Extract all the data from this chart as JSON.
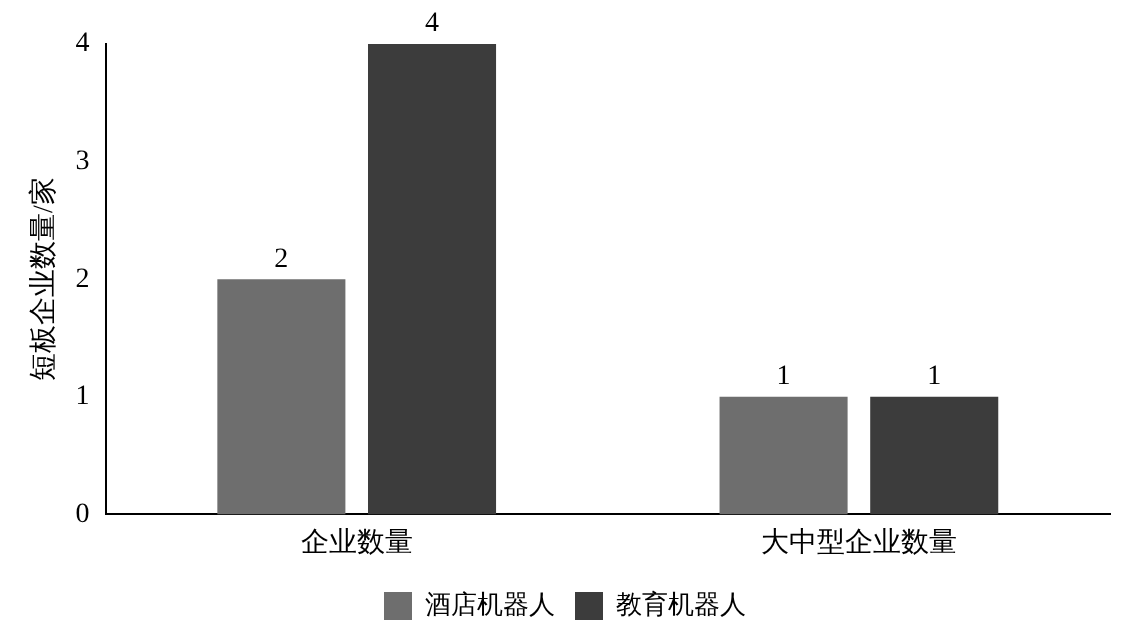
{
  "chart_data": {
    "type": "bar",
    "ylabel": "短板企业数量/家",
    "categories": [
      "企业数量",
      "大中型企业数量"
    ],
    "series": [
      {
        "name": "酒店机器人",
        "color": "#6e6e6e",
        "values": [
          2,
          1
        ]
      },
      {
        "name": "教育机器人",
        "color": "#3c3c3c",
        "values": [
          4,
          1
        ]
      }
    ],
    "ylim": [
      0,
      4
    ],
    "yticks": [
      0,
      1,
      2,
      3,
      4
    ],
    "grid": false,
    "legend": "bottom",
    "data_labels": true
  }
}
